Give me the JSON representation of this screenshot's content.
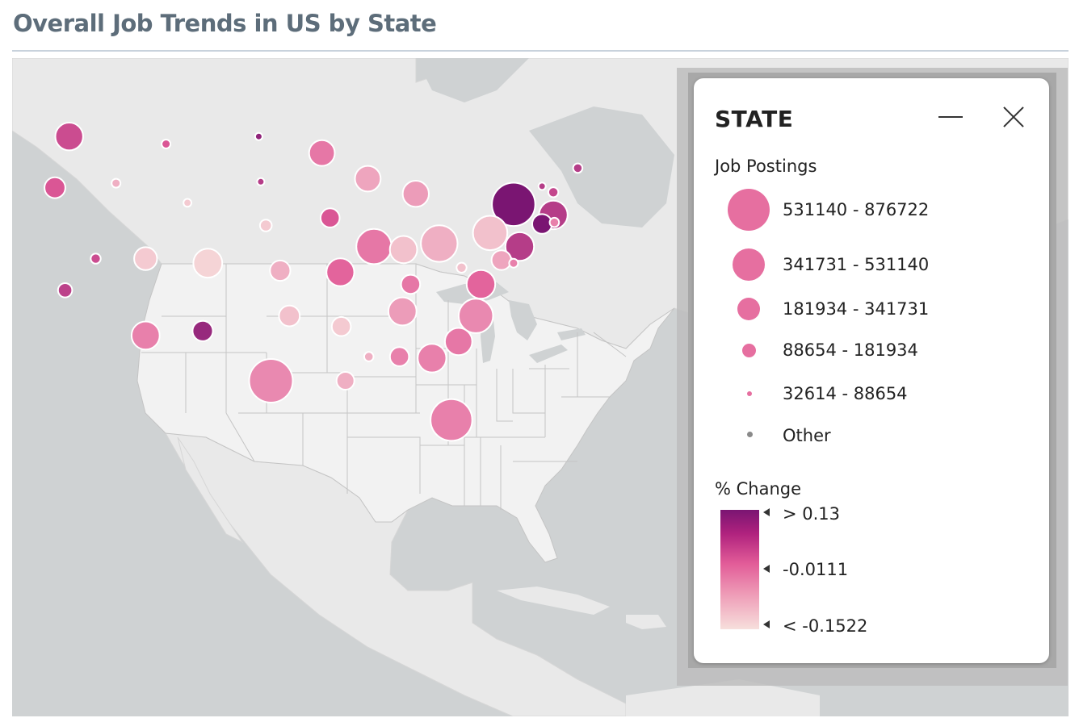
{
  "title": "Overall Job Trends in US by State",
  "map": {
    "colors": {
      "water": "#cfd2d3",
      "land_other": "#e6e6e6",
      "land_us": "#f2f2f2",
      "borders": "#c4c4c4"
    },
    "bubbles": [
      {
        "lon": -119.1,
        "lat": 47.4,
        "jobs": 310000,
        "change": 0.02
      },
      {
        "lon": -120.5,
        "lat": 44.0,
        "jobs": 160000,
        "change": 0.0
      },
      {
        "lon": -119.5,
        "lat": 37.2,
        "jobs": 70000,
        "change": 0.04
      },
      {
        "lon": -116.5,
        "lat": 39.3,
        "jobs": 40000,
        "change": 0.02
      },
      {
        "lon": -114.5,
        "lat": 44.3,
        "jobs": 36000,
        "change": -0.1
      },
      {
        "lon": -109.6,
        "lat": 46.9,
        "jobs": 36000,
        "change": 0.0
      },
      {
        "lon": -107.5,
        "lat": 43.0,
        "jobs": 34000,
        "change": -0.13
      },
      {
        "lon": -111.6,
        "lat": 39.3,
        "jobs": 200000,
        "change": -0.13
      },
      {
        "lon": -111.6,
        "lat": 34.2,
        "jobs": 320000,
        "change": -0.05
      },
      {
        "lon": -105.5,
        "lat": 39.0,
        "jobs": 340000,
        "change": -0.14
      },
      {
        "lon": -106.0,
        "lat": 34.5,
        "jobs": 150000,
        "change": 0.09
      },
      {
        "lon": -100.5,
        "lat": 47.4,
        "jobs": 33000,
        "change": 0.1
      },
      {
        "lon": -100.3,
        "lat": 44.4,
        "jobs": 33000,
        "change": 0.05
      },
      {
        "lon": -99.8,
        "lat": 41.5,
        "jobs": 50000,
        "change": -0.13
      },
      {
        "lon": -98.4,
        "lat": 38.5,
        "jobs": 150000,
        "change": -0.1
      },
      {
        "lon": -97.5,
        "lat": 35.5,
        "jobs": 160000,
        "change": -0.12
      },
      {
        "lon": -99.3,
        "lat": 31.2,
        "jobs": 876722,
        "change": -0.06
      },
      {
        "lon": -94.3,
        "lat": 46.3,
        "jobs": 260000,
        "change": -0.04
      },
      {
        "lon": -93.5,
        "lat": 42.0,
        "jobs": 130000,
        "change": 0.0
      },
      {
        "lon": -92.5,
        "lat": 38.4,
        "jobs": 310000,
        "change": -0.02
      },
      {
        "lon": -92.4,
        "lat": 34.8,
        "jobs": 130000,
        "change": -0.13
      },
      {
        "lon": -92.0,
        "lat": 31.2,
        "jobs": 110000,
        "change": -0.1
      },
      {
        "lon": -89.8,
        "lat": 44.6,
        "jobs": 260000,
        "change": -0.09
      },
      {
        "lon": -89.2,
        "lat": 40.1,
        "jobs": 540000,
        "change": -0.04
      },
      {
        "lon": -89.7,
        "lat": 32.8,
        "jobs": 38000,
        "change": -0.1
      },
      {
        "lon": -86.3,
        "lat": 39.9,
        "jobs": 300000,
        "change": -0.12
      },
      {
        "lon": -85.1,
        "lat": 43.6,
        "jobs": 270000,
        "change": -0.08
      },
      {
        "lon": -85.6,
        "lat": 37.6,
        "jobs": 130000,
        "change": -0.04
      },
      {
        "lon": -86.4,
        "lat": 35.8,
        "jobs": 320000,
        "change": -0.08
      },
      {
        "lon": -86.7,
        "lat": 32.8,
        "jobs": 130000,
        "change": -0.05
      },
      {
        "lon": -82.8,
        "lat": 40.3,
        "jobs": 590000,
        "change": -0.1
      },
      {
        "lon": -83.5,
        "lat": 32.7,
        "jobs": 330000,
        "change": -0.05
      },
      {
        "lon": -81.6,
        "lat": 28.6,
        "jobs": 790000,
        "change": -0.05
      },
      {
        "lon": -77.8,
        "lat": 41.0,
        "jobs": 510000,
        "change": -0.12
      },
      {
        "lon": -80.6,
        "lat": 38.7,
        "jobs": 40000,
        "change": -0.12
      },
      {
        "lon": -78.7,
        "lat": 37.6,
        "jobs": 330000,
        "change": -0.02
      },
      {
        "lon": -79.2,
        "lat": 35.5,
        "jobs": 510000,
        "change": -0.06
      },
      {
        "lon": -80.9,
        "lat": 33.8,
        "jobs": 300000,
        "change": -0.04
      },
      {
        "lon": -75.5,
        "lat": 42.9,
        "jobs": 860000,
        "change": 0.18
      },
      {
        "lon": -74.9,
        "lat": 40.1,
        "jobs": 330000,
        "change": 0.05
      },
      {
        "lon": -72.7,
        "lat": 41.6,
        "jobs": 140000,
        "change": 0.13
      },
      {
        "lon": -71.6,
        "lat": 42.2,
        "jobs": 330000,
        "change": 0.05
      },
      {
        "lon": -71.5,
        "lat": 41.7,
        "jobs": 38000,
        "change": -0.05
      },
      {
        "lon": -72.7,
        "lat": 44.1,
        "jobs": 33000,
        "change": 0.05
      },
      {
        "lon": -71.6,
        "lat": 43.7,
        "jobs": 40000,
        "change": 0.03
      },
      {
        "lon": -69.2,
        "lat": 45.3,
        "jobs": 38000,
        "change": 0.05
      },
      {
        "lon": -75.5,
        "lat": 39.0,
        "jobs": 36000,
        "change": -0.05
      },
      {
        "lon": -76.7,
        "lat": 39.2,
        "jobs": 140000,
        "change": -0.09
      }
    ]
  },
  "legend": {
    "title": "STATE",
    "size_label": "Job Postings",
    "size_ranges": [
      {
        "label": "531140 - 876722",
        "diameter": 52
      },
      {
        "label": "341731 - 531140",
        "diameter": 40
      },
      {
        "label": "181934 - 341731",
        "diameter": 28
      },
      {
        "label": "88654 - 181934",
        "diameter": 17
      },
      {
        "label": "32614 - 88654",
        "diameter": 6
      },
      {
        "label": "Other",
        "diameter": 7
      }
    ],
    "color_label": "% Change",
    "color_ticks": [
      "> 0.13",
      "-0.0111",
      "< -0.1522"
    ],
    "colors": [
      "#7a1572",
      "#e25c98",
      "#f7dfdc"
    ],
    "size_color": "#e66fa0"
  }
}
